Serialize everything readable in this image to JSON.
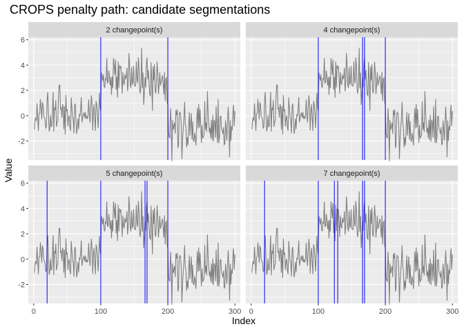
{
  "chart_data": {
    "type": "line",
    "title": "CROPS penalty path: candidate segmentations",
    "xlabel": "Index",
    "ylabel": "Value",
    "xlim": [
      -8,
      308
    ],
    "ylim": [
      -3.5,
      6.2
    ],
    "x_ticks": [
      0,
      100,
      200,
      300
    ],
    "y_ticks": [
      -2,
      0,
      2,
      4,
      6
    ],
    "grid": true,
    "series_color": "#808080",
    "changepoint_color": "#0000ff",
    "panel_background": "#ebebeb",
    "strip_background": "#d9d9d9",
    "segment_means": [
      {
        "start": 1,
        "end": 100,
        "mean": 0
      },
      {
        "start": 101,
        "end": 200,
        "mean": 3
      },
      {
        "start": 201,
        "end": 300,
        "mean": -1
      }
    ],
    "noise_sd": 1,
    "n_points": 300,
    "facets": [
      {
        "label": "2 changepoint(s)",
        "changepoints": [
          100,
          200
        ]
      },
      {
        "label": "4 changepoint(s)",
        "changepoints": [
          100,
          166,
          169,
          200
        ]
      },
      {
        "label": "5 changepoint(s)",
        "changepoints": [
          20,
          100,
          166,
          169,
          200
        ]
      },
      {
        "label": "7 changepoint(s)",
        "changepoints": [
          20,
          100,
          124,
          129,
          166,
          169,
          200
        ]
      }
    ]
  }
}
